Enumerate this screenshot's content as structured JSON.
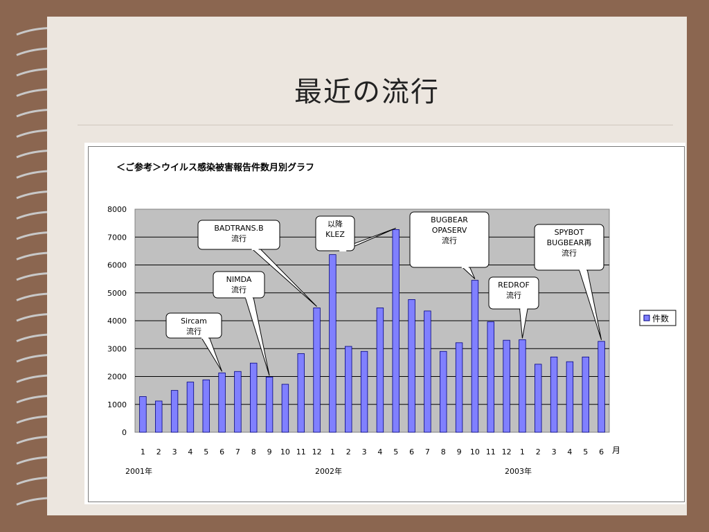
{
  "slide": {
    "title": "最近の流行"
  },
  "chart_data": {
    "type": "bar",
    "title": "＜ご参考＞ウイルス感染被害報告件数月別グラフ",
    "categories": [
      "1",
      "2",
      "3",
      "4",
      "5",
      "6",
      "7",
      "8",
      "9",
      "10",
      "11",
      "12",
      "1",
      "2",
      "3",
      "4",
      "5",
      "6",
      "7",
      "8",
      "9",
      "10",
      "11",
      "12",
      "1",
      "2",
      "3",
      "4",
      "5",
      "6"
    ],
    "year_labels": [
      {
        "label": "2001年",
        "index": 0
      },
      {
        "label": "2002年",
        "index": 12
      },
      {
        "label": "2003年",
        "index": 24
      }
    ],
    "x_unit": "月",
    "series": [
      {
        "name": "件数",
        "values": [
          1280,
          1120,
          1500,
          1800,
          1880,
          2130,
          2180,
          2480,
          1980,
          1720,
          2820,
          4460,
          6370,
          3080,
          2900,
          4460,
          7270,
          4760,
          4350,
          2900,
          3210,
          5450,
          3960,
          3300,
          3320,
          2440,
          2700,
          2530,
          2700,
          3260
        ]
      }
    ],
    "yticks": [
      "0",
      "1000",
      "2000",
      "3000",
      "4000",
      "5000",
      "6000",
      "7000",
      "8000"
    ],
    "ylim": [
      0,
      8000
    ],
    "grid": true,
    "bar_color": "#8080ff",
    "plot_bg": "#c0c0c0",
    "legend_position": "right",
    "annotations": [
      {
        "lines": [
          "Sircam",
          "流行"
        ],
        "target_index": 5
      },
      {
        "lines": [
          "NIMDA",
          "流行"
        ],
        "target_index": 8
      },
      {
        "lines": [
          "BADTRANS.B",
          "流行"
        ],
        "target_index": 11
      },
      {
        "lines": [
          "以降",
          "KLEZ"
        ],
        "target_index": 16
      },
      {
        "lines": [
          "BUGBEAR",
          "OPASERV",
          "流行"
        ],
        "target_index": 21
      },
      {
        "lines": [
          "REDROF",
          "流行"
        ],
        "target_index": 24
      },
      {
        "lines": [
          "SPYBOT",
          "BUGBEAR再",
          "流行"
        ],
        "target_index": 29
      }
    ]
  }
}
